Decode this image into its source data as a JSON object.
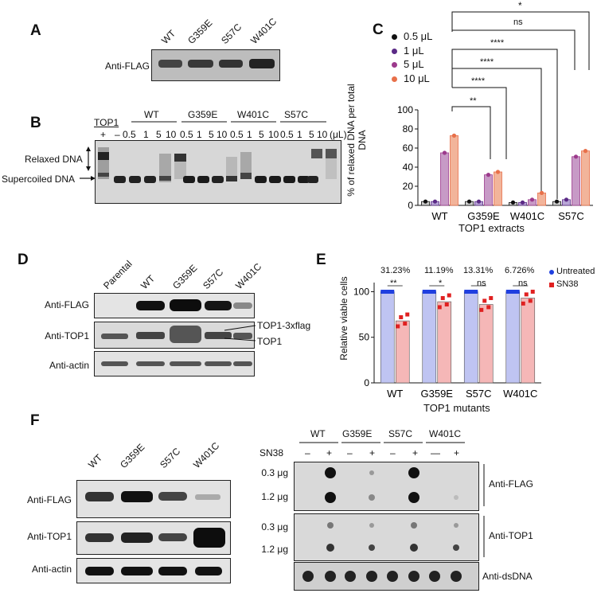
{
  "panels": {
    "A": {
      "label": "A",
      "lanes": [
        "WT",
        "G359E",
        "S57C",
        "W401C"
      ],
      "row_label": "Anti-FLAG"
    },
    "B": {
      "label": "B",
      "top1_label": "TOP1",
      "groups": [
        "WT",
        "G359E",
        "W401C",
        "S57C"
      ],
      "ctrl_marks": [
        "+",
        "–"
      ],
      "doses": [
        "0.5",
        "1",
        "5",
        "10"
      ],
      "unit": "(μL)",
      "relaxed_label": "Relaxed DNA",
      "supercoiled_label": "Supercoiled DNA"
    },
    "C": {
      "label": "C",
      "legend": [
        {
          "name": "0.5 μL",
          "color": "#111111"
        },
        {
          "name": "1 μL",
          "color": "#5b2a86"
        },
        {
          "name": "5 μL",
          "color": "#9c3a8c"
        },
        {
          "name": "10 μL",
          "color": "#e8704a"
        }
      ],
      "significance": [
        "*",
        "ns",
        "****",
        "****",
        "****",
        "**"
      ]
    },
    "D": {
      "label": "D",
      "lanes": [
        "Parental",
        "WT",
        "G359E",
        "S57C",
        "W401C"
      ],
      "rows": [
        "Anti-FLAG",
        "Anti-TOP1",
        "Anti-actin"
      ],
      "band_labels": [
        "TOP1-3xflag",
        "TOP1"
      ]
    },
    "E": {
      "label": "E",
      "legend": [
        {
          "name": "Untreated",
          "color": "#1f3fe0"
        },
        {
          "name": "SN38",
          "color": "#e02020"
        }
      ],
      "percents": [
        "31.23%",
        "11.19%",
        "13.31%",
        "6.726%"
      ],
      "significance": [
        "**",
        "*",
        "ns",
        "ns"
      ]
    },
    "F": {
      "label": "F",
      "lanes": [
        "WT",
        "G359E",
        "S57C",
        "W401C"
      ],
      "rows": [
        "Anti-FLAG",
        "Anti-TOP1",
        "Anti-actin"
      ],
      "dot_groups": [
        "WT",
        "G359E",
        "S57C",
        "W401C"
      ],
      "sn38_label": "SN38",
      "sn38_marks": [
        "–",
        "+",
        "–",
        "+",
        "–",
        "+",
        "—",
        "+"
      ],
      "amounts": [
        "0.3 μg",
        "1.2 μg"
      ],
      "dot_rows": [
        "Anti-FLAG",
        "Anti-TOP1",
        "Anti-dsDNA"
      ]
    }
  },
  "chart_data": [
    {
      "type": "bar",
      "title": "",
      "xlabel": "TOP1 extracts",
      "ylabel": "% of relaxed DNA per total DNA",
      "categories": [
        "WT",
        "G359E",
        "W401C",
        "S57C"
      ],
      "ylim": [
        0,
        100
      ],
      "yticks": [
        "0",
        "20",
        "40",
        "60",
        "80",
        "100"
      ],
      "series": [
        {
          "name": "0.5 μL",
          "values": [
            4,
            4,
            3,
            4
          ]
        },
        {
          "name": "1 μL",
          "values": [
            4,
            4,
            3,
            6
          ]
        },
        {
          "name": "5 μL",
          "values": [
            55,
            32,
            6,
            51
          ]
        },
        {
          "name": "10 μL",
          "values": [
            73,
            35,
            13,
            57
          ]
        }
      ]
    },
    {
      "type": "bar",
      "title": "",
      "xlabel": "TOP1 mutants",
      "ylabel": "Relative viable cells",
      "categories": [
        "WT",
        "G359E",
        "S57C",
        "W401C"
      ],
      "ylim": [
        0,
        110
      ],
      "yticks": [
        "0",
        "50",
        "100"
      ],
      "series": [
        {
          "name": "Untreated",
          "values": [
            100,
            100,
            100,
            100
          ]
        },
        {
          "name": "SN38",
          "values": [
            68,
            89,
            86,
            93
          ]
        }
      ]
    }
  ]
}
